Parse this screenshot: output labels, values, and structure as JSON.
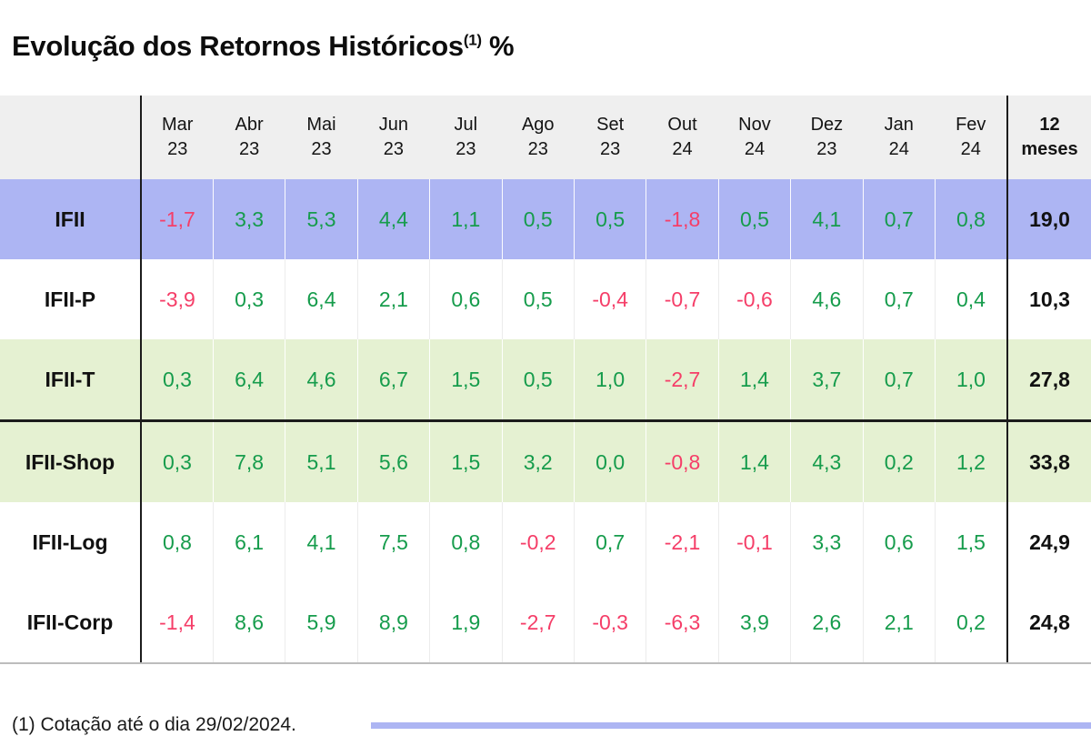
{
  "page": {
    "title_main": "Evolução dos Retornos Históricos",
    "title_sup": "(1)",
    "title_suffix": " %",
    "footnote": "(1) Cotação até o dia 29/02/2024."
  },
  "colors": {
    "positive_text": "#169c4c",
    "negative_text": "#f53e68",
    "header_bg": "#efefef",
    "highlight_blue": "#adb5f3",
    "highlight_green": "#e5f1d2",
    "row_white": "#ffffff",
    "grid_black": "#1c1c1c"
  },
  "table": {
    "header": {
      "months": [
        {
          "m": "Mar",
          "y": "23"
        },
        {
          "m": "Abr",
          "y": "23"
        },
        {
          "m": "Mai",
          "y": "23"
        },
        {
          "m": "Jun",
          "y": "23"
        },
        {
          "m": "Jul",
          "y": "23"
        },
        {
          "m": "Ago",
          "y": "23"
        },
        {
          "m": "Set",
          "y": "23"
        },
        {
          "m": "Out",
          "y": "24"
        },
        {
          "m": "Nov",
          "y": "24"
        },
        {
          "m": "Dez",
          "y": "23"
        },
        {
          "m": "Jan",
          "y": "24"
        },
        {
          "m": "Fev",
          "y": "24"
        }
      ],
      "total_line1": "12",
      "total_line2": "meses"
    },
    "rows": [
      {
        "label": "IFII",
        "bg": "#adb5f3",
        "bg_name": "blue",
        "divider_top": false,
        "values": [
          "-1,7",
          "3,3",
          "5,3",
          "4,4",
          "1,1",
          "0,5",
          "0,5",
          "-1,8",
          "0,5",
          "4,1",
          "0,7",
          "0,8"
        ],
        "total": "19,0"
      },
      {
        "label": "IFII-P",
        "bg": "#ffffff",
        "bg_name": "white",
        "divider_top": false,
        "values": [
          "-3,9",
          "0,3",
          "6,4",
          "2,1",
          "0,6",
          "0,5",
          "-0,4",
          "-0,7",
          "-0,6",
          "4,6",
          "0,7",
          "0,4"
        ],
        "total": "10,3"
      },
      {
        "label": "IFII-T",
        "bg": "#e5f1d2",
        "bg_name": "green",
        "divider_top": false,
        "values": [
          "0,3",
          "6,4",
          "4,6",
          "6,7",
          "1,5",
          "0,5",
          "1,0",
          "-2,7",
          "1,4",
          "3,7",
          "0,7",
          "1,0"
        ],
        "total": "27,8"
      },
      {
        "label": "IFII-Shop",
        "bg": "#e5f1d2",
        "bg_name": "green",
        "divider_top": true,
        "values": [
          "0,3",
          "7,8",
          "5,1",
          "5,6",
          "1,5",
          "3,2",
          "0,0",
          "-0,8",
          "1,4",
          "4,3",
          "0,2",
          "1,2"
        ],
        "total": "33,8"
      },
      {
        "label": "IFII-Log",
        "bg": "#ffffff",
        "bg_name": "white",
        "divider_top": false,
        "values": [
          "0,8",
          "6,1",
          "4,1",
          "7,5",
          "0,8",
          "-0,2",
          "0,7",
          "-2,1",
          "-0,1",
          "3,3",
          "0,6",
          "1,5"
        ],
        "total": "24,9"
      },
      {
        "label": "IFII-Corp",
        "bg": "#ffffff",
        "bg_name": "white",
        "divider_top": false,
        "values": [
          "-1,4",
          "8,6",
          "5,9",
          "8,9",
          "1,9",
          "-2,7",
          "-0,3",
          "-6,3",
          "3,9",
          "2,6",
          "2,1",
          "0,2"
        ],
        "total": "24,8"
      }
    ]
  },
  "chart_data": {
    "type": "table",
    "title": "Evolução dos Retornos Históricos (1) %",
    "categories": [
      "Mar 23",
      "Abr 23",
      "Mai 23",
      "Jun 23",
      "Jul 23",
      "Ago 23",
      "Set 23",
      "Out 24",
      "Nov 24",
      "Dez 23",
      "Jan 24",
      "Fev 24"
    ],
    "total_column_label": "12 meses",
    "series": [
      {
        "name": "IFII",
        "values": [
          -1.7,
          3.3,
          5.3,
          4.4,
          1.1,
          0.5,
          0.5,
          -1.8,
          0.5,
          4.1,
          0.7,
          0.8
        ],
        "total_12m": 19.0
      },
      {
        "name": "IFII-P",
        "values": [
          -3.9,
          0.3,
          6.4,
          2.1,
          0.6,
          0.5,
          -0.4,
          -0.7,
          -0.6,
          4.6,
          0.7,
          0.4
        ],
        "total_12m": 10.3
      },
      {
        "name": "IFII-T",
        "values": [
          0.3,
          6.4,
          4.6,
          6.7,
          1.5,
          0.5,
          1.0,
          -2.7,
          1.4,
          3.7,
          0.7,
          1.0
        ],
        "total_12m": 27.8
      },
      {
        "name": "IFII-Shop",
        "values": [
          0.3,
          7.8,
          5.1,
          5.6,
          1.5,
          3.2,
          0.0,
          -0.8,
          1.4,
          4.3,
          0.2,
          1.2
        ],
        "total_12m": 33.8
      },
      {
        "name": "IFII-Log",
        "values": [
          0.8,
          6.1,
          4.1,
          7.5,
          0.8,
          -0.2,
          0.7,
          -2.1,
          -0.1,
          3.3,
          0.6,
          1.5
        ],
        "total_12m": 24.9
      },
      {
        "name": "IFII-Corp",
        "values": [
          -1.4,
          8.6,
          5.9,
          8.9,
          1.9,
          -2.7,
          -0.3,
          -6.3,
          3.9,
          2.6,
          2.1,
          0.2
        ],
        "total_12m": 24.8
      }
    ],
    "footnote": "(1) Cotação até o dia 29/02/2024.",
    "value_color_rule": "negative values shown in pink/red, non-negative in green; 12-month totals in bold black"
  }
}
